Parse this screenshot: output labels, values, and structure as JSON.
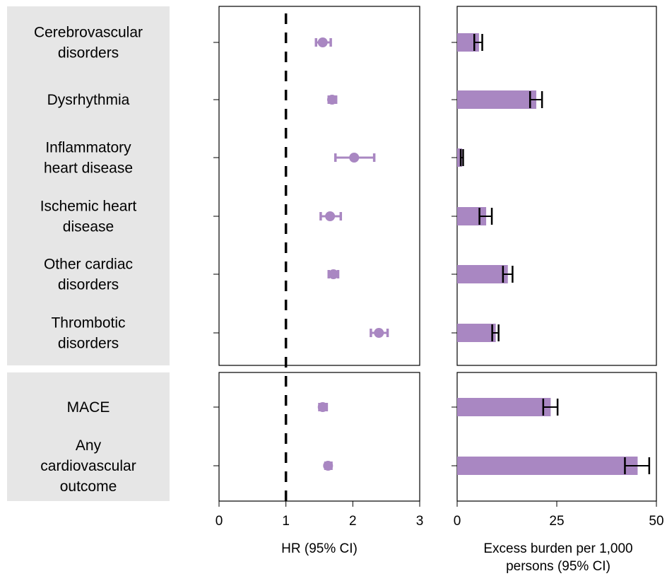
{
  "chart_data": [
    {
      "type": "scatter",
      "xlabel": "HR (95% CI)",
      "xlim": [
        0,
        3
      ],
      "xticks": [
        0,
        1,
        2,
        3
      ],
      "reference_line": 1,
      "color": "#a987c2",
      "groups": [
        {
          "rows": [
            {
              "label": [
                "Cerebrovascular",
                "disorders"
              ],
              "hr": 1.55,
              "lo": 1.45,
              "hi": 1.67
            },
            {
              "label": [
                "Dysrhythmia"
              ],
              "hr": 1.69,
              "lo": 1.64,
              "hi": 1.75
            },
            {
              "label": [
                "Inflammatory",
                "heart disease"
              ],
              "hr": 2.02,
              "lo": 1.74,
              "hi": 2.32
            },
            {
              "label": [
                "Ischemic heart",
                "disease"
              ],
              "hr": 1.66,
              "lo": 1.52,
              "hi": 1.82
            },
            {
              "label": [
                "Other cardiac",
                "disorders"
              ],
              "hr": 1.71,
              "lo": 1.64,
              "hi": 1.78
            },
            {
              "label": [
                "Thrombotic",
                "disorders"
              ],
              "hr": 2.39,
              "lo": 2.27,
              "hi": 2.52
            }
          ]
        },
        {
          "rows": [
            {
              "label": [
                "MACE"
              ],
              "hr": 1.55,
              "lo": 1.5,
              "hi": 1.61
            },
            {
              "label": [
                "Any",
                "cardiovascular",
                "outcome"
              ],
              "hr": 1.63,
              "lo": 1.59,
              "hi": 1.68
            }
          ]
        }
      ]
    },
    {
      "type": "bar",
      "xlabel": [
        "Excess burden per 1,000",
        "persons (95% CI)"
      ],
      "xlim": [
        0,
        50
      ],
      "xticks": [
        0,
        25,
        50
      ],
      "color": "#a987c2",
      "values": [
        5.48,
        19.86,
        1.23,
        7.28,
        12.72,
        9.69,
        23.48,
        45.29
      ],
      "ci_low": [
        4.3,
        18.3,
        0.9,
        5.6,
        11.5,
        8.8,
        21.6,
        42.1
      ],
      "ci_high": [
        6.3,
        21.3,
        1.5,
        8.7,
        13.9,
        10.4,
        25.2,
        48.2
      ]
    }
  ]
}
